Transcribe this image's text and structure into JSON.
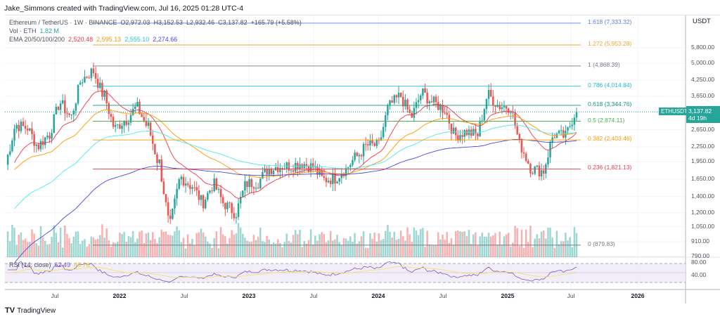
{
  "credit": "Jake_Simmons created with TradingView.com, Jul 16, 2025 01:28 UTC-4",
  "legend": {
    "symbol": "Ethereum / TetherUS · 1W · BINANCE",
    "o": "O2,972.03",
    "h": "H3,152.53",
    "l": "L2,932.46",
    "c": "C3,137.82",
    "chg": "+165.79 (+5.58%)",
    "vol_label": "Vol · ETH",
    "vol_value": "1.82 M",
    "ema_label": "EMA 20/50/100/200",
    "ema": [
      "2,520.48",
      "2,595.13",
      "2,555.10",
      "2,274.66"
    ],
    "rsi_label": "RSI (14, close)",
    "rsi": [
      "62.49",
      "49.76"
    ]
  },
  "colors": {
    "up": "#26a69a",
    "down": "#ef5350",
    "ema": [
      "#f23645",
      "#ff9800",
      "#4de8f0",
      "#4a47e0"
    ],
    "rsi": "#7e57c2",
    "rsi_ma": "#f5e15a"
  },
  "axis": {
    "currency": "USDT",
    "price_ticks": [
      "5,800.00",
      "5,000.00",
      "4,250.00",
      "3,650.00",
      "2,650.00",
      "2,250.00",
      "1,950.00",
      "1,650.00",
      "1,400.00",
      "1,200.00",
      "1,050.00",
      "910.00",
      "790.00"
    ],
    "rsi_ticks": [
      "80.00",
      "40.00"
    ],
    "time_ticks": [
      "Jul",
      "2022",
      "Jul",
      "2023",
      "Jul",
      "2024",
      "Jul",
      "2025",
      "Jul",
      "2026"
    ]
  },
  "price_tag": {
    "symbol": "ETHUSDT",
    "price": "3,137.82",
    "countdown": "4d 19h"
  },
  "fib": [
    {
      "label": "1.618 (7,333.32)",
      "price": 7333.32,
      "color": "#5b7fe0"
    },
    {
      "label": "1.272 (5,953.28)",
      "price": 5953.28,
      "color": "#f5a623"
    },
    {
      "label": "1 (4,868.39)",
      "price": 4868.39,
      "color": "#787b86"
    },
    {
      "label": "0.786 (4,014.84)",
      "price": 4014.84,
      "color": "#22b8d6"
    },
    {
      "label": "0.618 (3,344.76)",
      "price": 3344.76,
      "color": "#089981"
    },
    {
      "label": "0.5 (2,874.11)",
      "price": 2874.11,
      "color": "#4caf50"
    },
    {
      "label": "0.382 (2,403.46)",
      "price": 2403.46,
      "color": "#ff9800"
    },
    {
      "label": "0.236 (1,821.13)",
      "price": 1821.13,
      "color": "#f23645"
    },
    {
      "label": "0 (879.83)",
      "price": 879.83,
      "color": "#787b86"
    }
  ],
  "chart_data": {
    "type": "candlestick",
    "scale": "log",
    "ylim": [
      790,
      7333
    ],
    "monthly_closes_from": "2021-03",
    "closes": [
      1900,
      2770,
      2700,
      2270,
      2530,
      3430,
      3000,
      4300,
      4630,
      3680,
      2690,
      2920,
      3280,
      2730,
      1940,
      1070,
      1680,
      1550,
      1330,
      1570,
      1300,
      1200,
      1585,
      1605,
      1820,
      1870,
      1875,
      1930,
      1860,
      1645,
      1670,
      1815,
      2050,
      2280,
      2280,
      3340,
      3650,
      3010,
      3760,
      3430,
      3230,
      2510,
      2600,
      2520,
      3700,
      3330,
      3300,
      2240,
      1820,
      1790,
      2530,
      2490,
      3137.82
    ]
  },
  "footer": {
    "logo": "TradingView"
  }
}
